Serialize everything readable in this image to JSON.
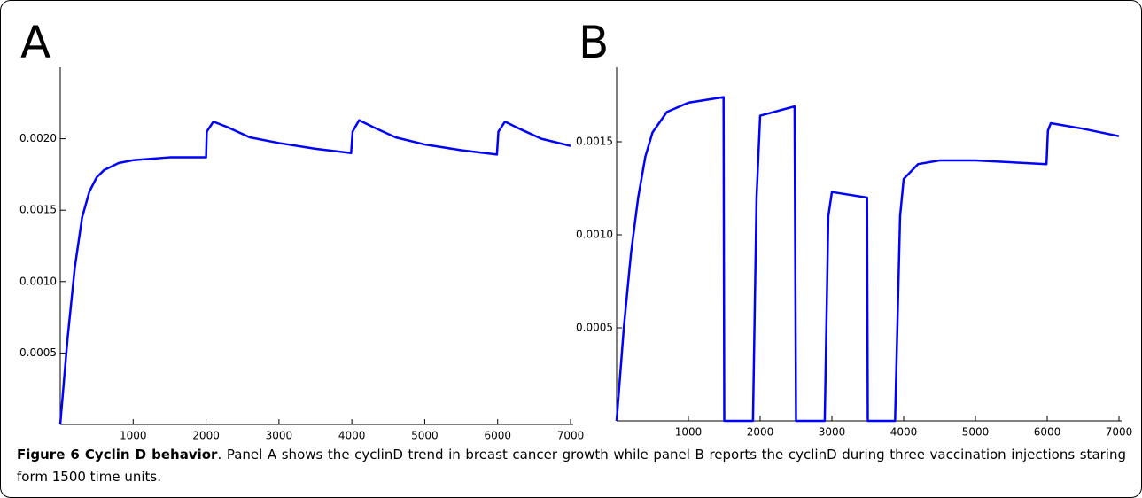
{
  "chart_data": [
    {
      "type": "line",
      "panel": "A",
      "x": [
        0,
        100,
        200,
        300,
        400,
        500,
        600,
        800,
        1000,
        1500,
        2000,
        2010,
        2100,
        2300,
        2600,
        3000,
        3500,
        3990,
        4010,
        4100,
        4300,
        4600,
        5000,
        5500,
        5990,
        6010,
        6100,
        6300,
        6600,
        7000
      ],
      "series": [
        {
          "color": "#0000ff",
          "values": [
            0,
            0.0006,
            0.0011,
            0.00145,
            0.00163,
            0.00173,
            0.00178,
            0.00183,
            0.00185,
            0.00187,
            0.00187,
            0.00205,
            0.00212,
            0.00208,
            0.00201,
            0.00197,
            0.00193,
            0.0019,
            0.00205,
            0.00213,
            0.00208,
            0.00201,
            0.00196,
            0.00192,
            0.00189,
            0.00205,
            0.00212,
            0.00207,
            0.002,
            0.00195
          ]
        }
      ],
      "xlim": [
        0,
        7000
      ],
      "ylim": [
        0,
        0.0025
      ],
      "xticks": [
        1000,
        2000,
        3000,
        4000,
        5000,
        6000,
        7000
      ],
      "yticks": [
        0.0005,
        {
          "value": 0.001,
          "label": "0.0010"
        },
        0.0015,
        {
          "value": 0.002,
          "label": "0.0020"
        }
      ]
    },
    {
      "type": "line",
      "panel": "B",
      "x": [
        0,
        100,
        200,
        300,
        400,
        500,
        700,
        1000,
        1490,
        1500,
        1900,
        1950,
        2000,
        2480,
        2500,
        2900,
        2950,
        3000,
        3490,
        3500,
        3880,
        3950,
        4000,
        4200,
        4500,
        5000,
        5990,
        6010,
        6050,
        6500,
        7000
      ],
      "series": [
        {
          "color": "#0000ff",
          "values": [
            0,
            0.0005,
            0.0009,
            0.0012,
            0.00142,
            0.00155,
            0.00166,
            0.00171,
            0.00174,
            0,
            0,
            0.0012,
            0.00164,
            0.00169,
            0,
            0,
            0.0011,
            0.00123,
            0.0012,
            0,
            0,
            0.0011,
            0.0013,
            0.00138,
            0.0014,
            0.0014,
            0.00138,
            0.00156,
            0.0016,
            0.00157,
            0.00153
          ]
        }
      ],
      "xlim": [
        0,
        7000
      ],
      "ylim": [
        0,
        0.0019
      ],
      "xticks": [
        1000,
        2000,
        3000,
        4000,
        5000,
        6000,
        7000
      ],
      "yticks": [
        0.0005,
        {
          "value": 0.001,
          "label": "0.0010"
        },
        0.0015
      ]
    }
  ],
  "caption": {
    "label": "Figure 6 Cyclin D behavior",
    "text": ". Panel A shows the cyclinD trend in breast cancer growth while panel B reports the cyclinD during three vaccination injections staring form 1500 time units."
  }
}
